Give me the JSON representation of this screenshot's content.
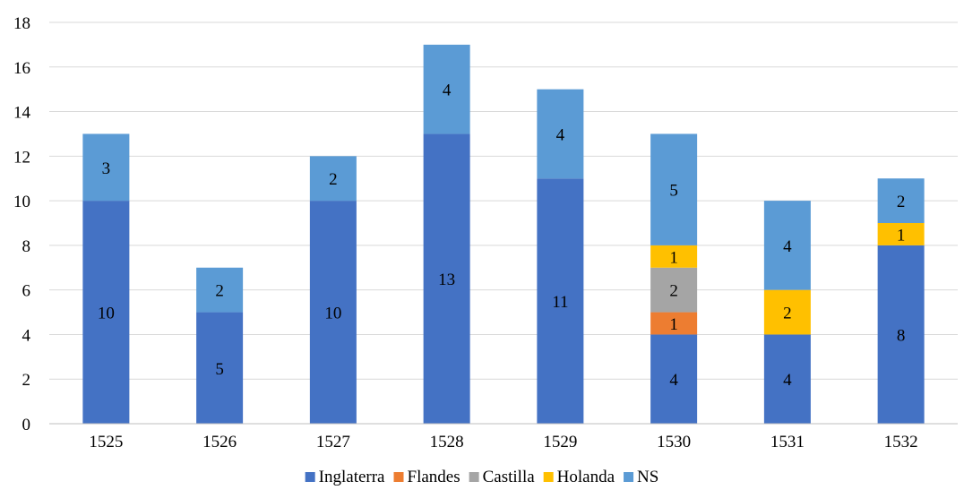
{
  "chart_data": {
    "type": "bar",
    "stacked": true,
    "categories": [
      "1525",
      "1526",
      "1527",
      "1528",
      "1529",
      "1530",
      "1531",
      "1532"
    ],
    "series": [
      {
        "name": "Inglaterra",
        "color": "#4472C4",
        "values": [
          10,
          5,
          10,
          13,
          11,
          4,
          4,
          8
        ]
      },
      {
        "name": "Flandes",
        "color": "#ED7D31",
        "values": [
          0,
          0,
          0,
          0,
          0,
          1,
          0,
          0
        ]
      },
      {
        "name": "Castilla",
        "color": "#A5A5A5",
        "values": [
          0,
          0,
          0,
          0,
          0,
          2,
          0,
          0
        ]
      },
      {
        "name": "Holanda",
        "color": "#FFC000",
        "values": [
          0,
          0,
          0,
          0,
          0,
          1,
          2,
          1
        ]
      },
      {
        "name": "NS",
        "color": "#5B9BD5",
        "values": [
          3,
          2,
          2,
          4,
          4,
          5,
          4,
          2
        ]
      }
    ],
    "ylim": [
      0,
      18
    ],
    "yticks": [
      0,
      2,
      4,
      6,
      8,
      10,
      12,
      14,
      16,
      18
    ],
    "grid": true,
    "legend_position": "bottom",
    "title": "",
    "xlabel": "",
    "ylabel": ""
  }
}
